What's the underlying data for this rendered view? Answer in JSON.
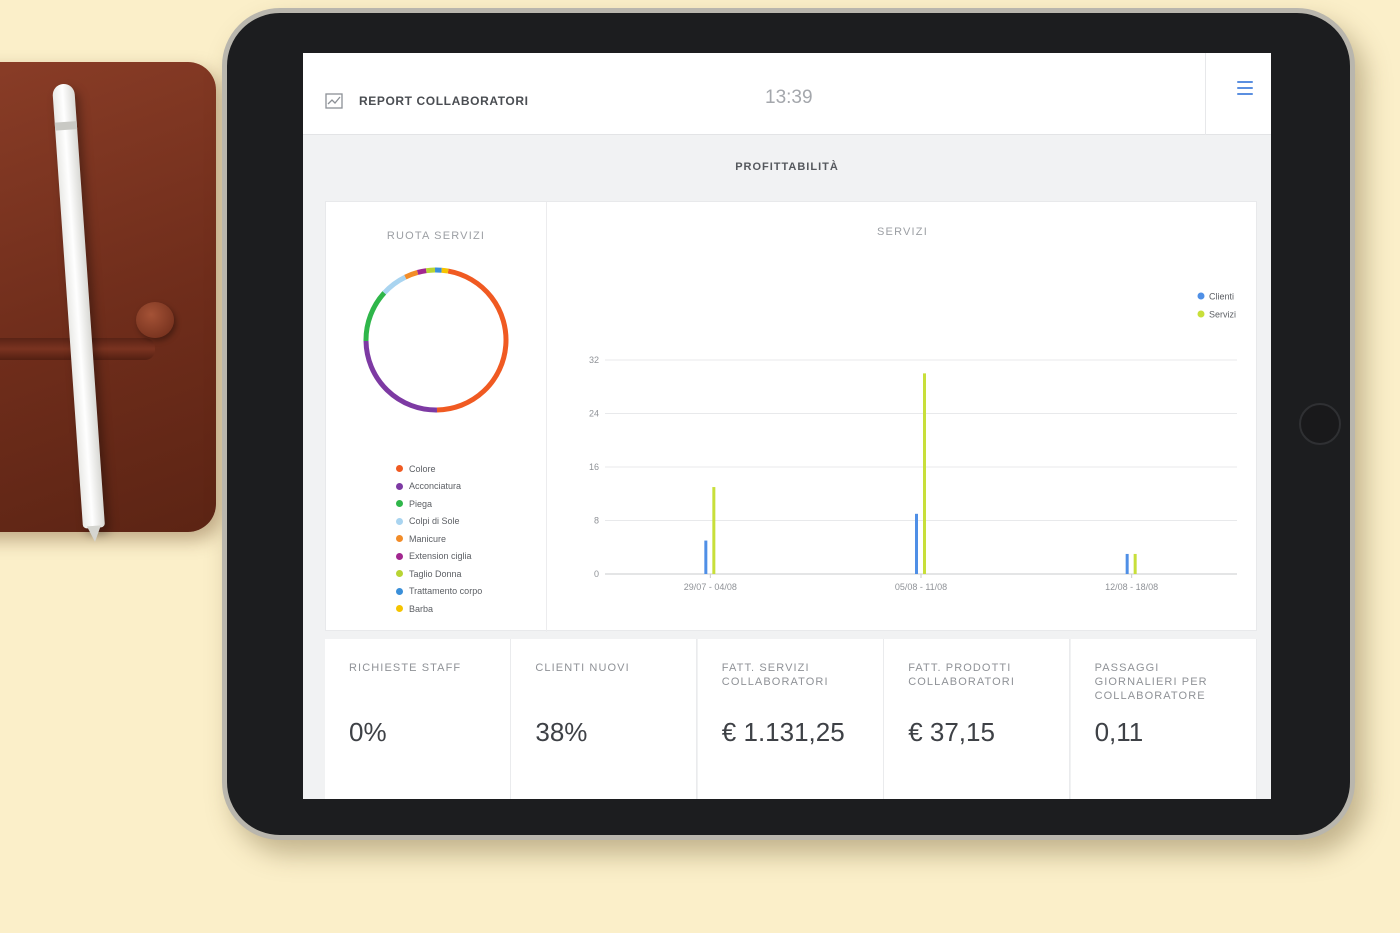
{
  "header": {
    "app_icon": "chart-line-icon",
    "title": "REPORT COLLABORATORI",
    "clock": "13:39",
    "menu_icon": "hamburger-menu-icon"
  },
  "section": {
    "title": "PROFITTABILITÀ"
  },
  "wheel": {
    "title": "RUOTA SERVIZI",
    "legend": [
      {
        "label": "Colore",
        "color": "#f05a22"
      },
      {
        "label": "Acconciatura",
        "color": "#7d3aa3"
      },
      {
        "label": "Piega",
        "color": "#2fb64a"
      },
      {
        "label": "Colpi di Sole",
        "color": "#a9d4f0"
      },
      {
        "label": "Manicure",
        "color": "#f28c28"
      },
      {
        "label": "Extension ciglia",
        "color": "#a2278f"
      },
      {
        "label": "Taglio Donna",
        "color": "#b8d433"
      },
      {
        "label": "Trattamento corpo",
        "color": "#3a8fd9"
      },
      {
        "label": "Barba",
        "color": "#f5c400"
      }
    ]
  },
  "chart_data": {
    "type": "bar",
    "title": "SERVIZI",
    "categories": [
      "29/07 - 04/08",
      "05/08 - 11/08",
      "12/08 - 18/08"
    ],
    "series": [
      {
        "name": "Clienti",
        "color": "#4f8fe6",
        "values": [
          5,
          9,
          3
        ]
      },
      {
        "name": "Servizi",
        "color": "#c8df3a",
        "values": [
          13,
          30,
          3
        ]
      }
    ],
    "yticks": [
      0,
      8,
      16,
      24,
      32
    ],
    "ylim": [
      0,
      32
    ],
    "legend_position": "top-right",
    "grid": true
  },
  "stats": [
    {
      "label": "Richieste staff",
      "value": "0%"
    },
    {
      "label": "Clienti nuovi",
      "value": "38%"
    },
    {
      "label": "Fatt. servizi collaboratori",
      "value": "€ 1.131,25"
    },
    {
      "label": "Fatt. prodotti collaboratori",
      "value": "€ 37,15"
    },
    {
      "label": "Passaggi giornalieri per collaboratore",
      "value": "0,11"
    }
  ]
}
